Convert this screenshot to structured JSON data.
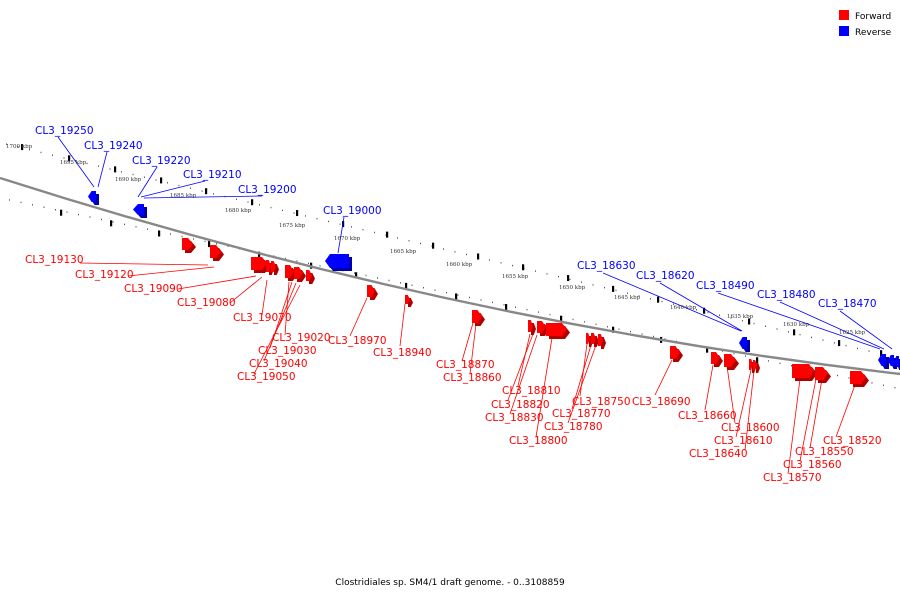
{
  "legend": {
    "forward_label": "Forward",
    "reverse_label": "Reverse",
    "forward_color": "#ff0000",
    "reverse_color": "#0000ff"
  },
  "caption": "Clostridiales sp. SM4/1 draft genome. - 0..3108859",
  "scale_labels": [
    "1700 kbp",
    "1695 kbp",
    "1690 kbp",
    "1685 kbp",
    "1680 kbp",
    "1675 kbp",
    "1670 kbp",
    "1665 kbp",
    "1660 kbp",
    "1655 kbp",
    "1650 kbp",
    "1645 kbp",
    "1640 kbp",
    "1635 kbp",
    "1630 kbp",
    "1625 kbp"
  ],
  "reverse_genes": [
    "CL3_19250",
    "CL3_19240",
    "CL3_19220",
    "CL3_19210",
    "CL3_19200",
    "CL3_19000",
    "CL3_18630",
    "CL3_18620",
    "CL3_18490",
    "CL3_18480",
    "CL3_18470"
  ],
  "forward_genes": [
    "CL3_19130",
    "CL3_19120",
    "CL3_19090",
    "CL3_19080",
    "CL3_19070",
    "CL3_19020",
    "CL3_19030",
    "CL3_19040",
    "CL3_19050",
    "CL3_18970",
    "CL3_18940",
    "CL3_18870",
    "CL3_18860",
    "CL3_18810",
    "CL3_18820",
    "CL3_18830",
    "CL3_18800",
    "CL3_18750",
    "CL3_18770",
    "CL3_18780",
    "CL3_18690",
    "CL3_18660",
    "CL3_18600",
    "CL3_18610",
    "CL3_18640",
    "CL3_18520",
    "CL3_18550",
    "CL3_18560",
    "CL3_18570"
  ]
}
